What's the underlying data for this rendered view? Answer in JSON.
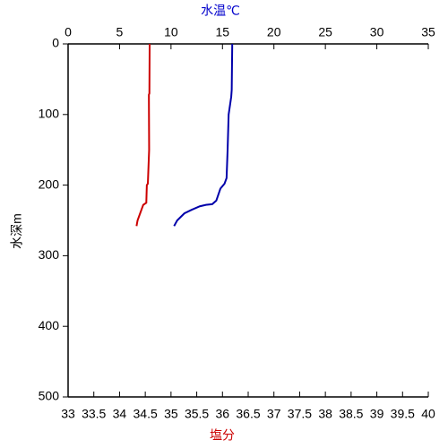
{
  "chart_data": {
    "type": "line",
    "x_label": "塩分",
    "x2_label": "水温℃",
    "y_label": "水深m",
    "x_label_color": "#cc0000",
    "x2_label_color": "#0000cc",
    "xlim": [
      33,
      40
    ],
    "xticks": [
      33,
      33.5,
      34,
      34.5,
      35,
      35.5,
      36,
      36.5,
      37,
      37.5,
      38,
      38.5,
      39,
      39.5,
      40
    ],
    "x2lim": [
      0,
      35
    ],
    "x2ticks": [
      0,
      5,
      10,
      15,
      20,
      25,
      30,
      35
    ],
    "ylim": [
      0,
      500
    ],
    "yticks": [
      0,
      100,
      200,
      300,
      400,
      500
    ],
    "y_inverted": true,
    "series": [
      {
        "color": "#cc0000",
        "axis": "x",
        "y": [
          0,
          70,
          72,
          150,
          198,
          200,
          225,
          228,
          232,
          240,
          250,
          258
        ],
        "x": [
          34.585,
          34.58,
          34.57,
          34.575,
          34.55,
          34.53,
          34.52,
          34.46,
          34.44,
          34.4,
          34.35,
          34.33
        ]
      },
      {
        "color": "#0000aa",
        "axis": "x2",
        "y": [
          0,
          65,
          75,
          90,
          100,
          150,
          190,
          198,
          205,
          222,
          227,
          228,
          230,
          235,
          240,
          250,
          258
        ],
        "x": [
          15.95,
          15.9,
          15.85,
          15.7,
          15.6,
          15.5,
          15.4,
          15.2,
          14.8,
          14.4,
          14.0,
          13.4,
          12.8,
          12.0,
          11.3,
          10.6,
          10.3
        ]
      }
    ]
  }
}
